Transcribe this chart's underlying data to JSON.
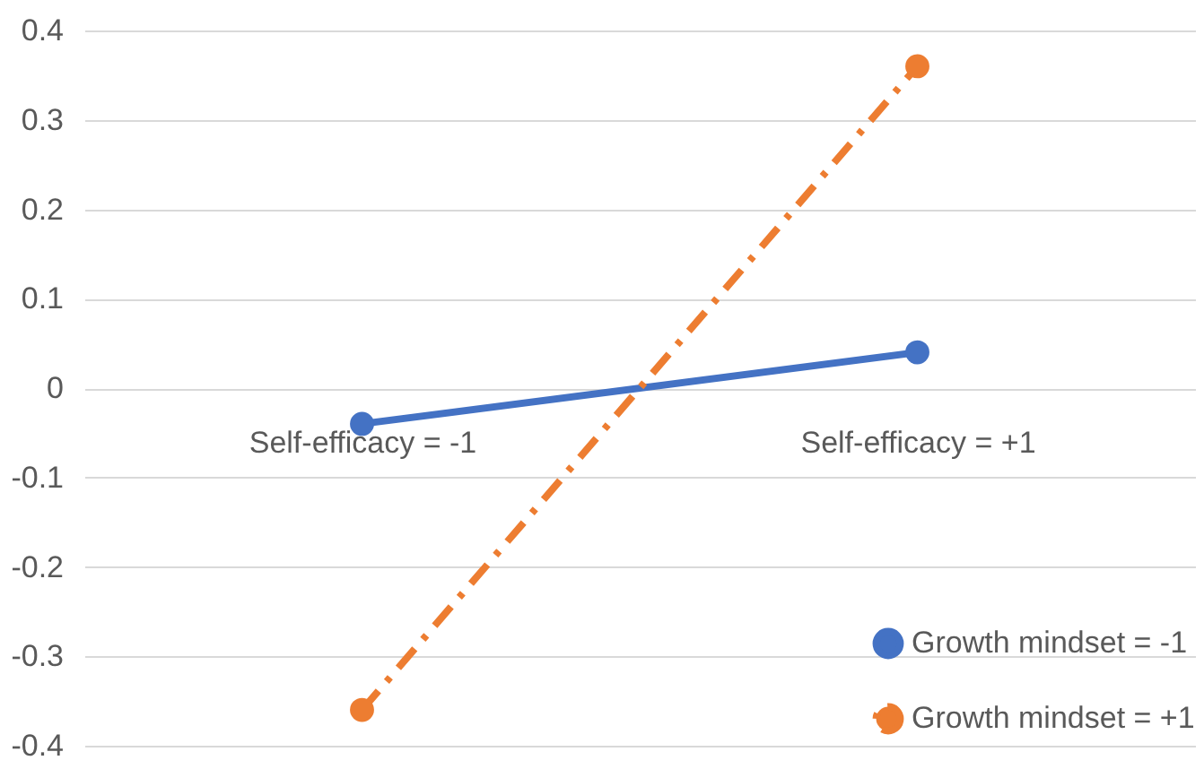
{
  "chart_data": {
    "type": "line",
    "categories": [
      "Self-efficacy = -1",
      "Self-efficacy = +1"
    ],
    "series": [
      {
        "name": "Growth mindset = -1",
        "color": "#4472c4",
        "values": [
          -0.04,
          0.04
        ],
        "line_style": "solid"
      },
      {
        "name": "Growth mindset = +1",
        "color": "#ed7d31",
        "values": [
          -0.36,
          0.36
        ],
        "line_style": "dashed"
      }
    ],
    "ylim": [
      -0.4,
      0.4
    ],
    "yticks": [
      -0.4,
      -0.3,
      -0.2,
      -0.1,
      0,
      0.1,
      0.2,
      0.3,
      0.4
    ],
    "grid": "y",
    "legend": "bottom right",
    "marker": "circle"
  }
}
